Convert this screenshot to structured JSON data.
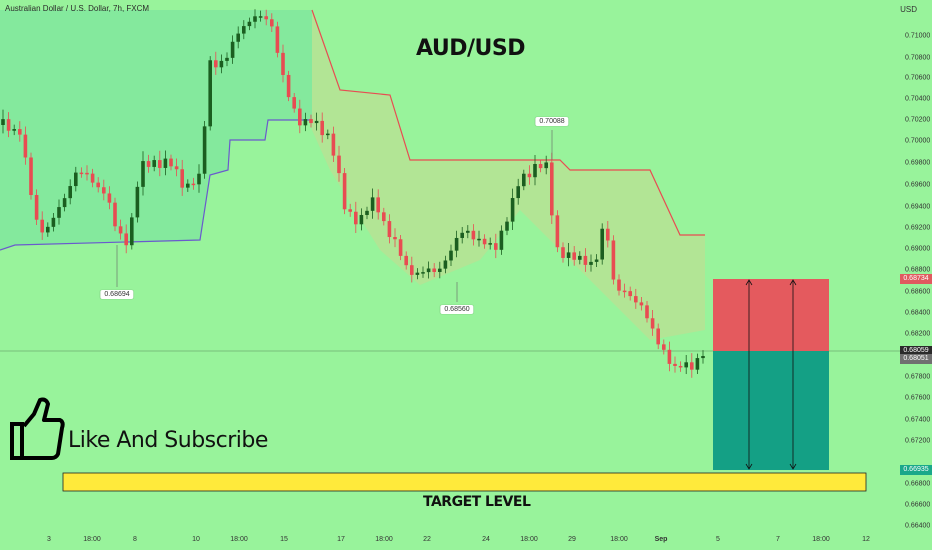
{
  "header": {
    "symbol_title": "Australian Dollar / U.S. Dollar, 7h, FXCM",
    "chart_title": "AUD/USD",
    "currency": "USD"
  },
  "y_axis_ticks": [
    "0.71000",
    "0.70800",
    "0.70600",
    "0.70400",
    "0.70200",
    "0.70000",
    "0.69800",
    "0.69600",
    "0.69400",
    "0.69200",
    "0.69000",
    "0.68800",
    "0.68600",
    "0.68400",
    "0.68200",
    "0.68000",
    "0.67800",
    "0.67600",
    "0.67400",
    "0.67200",
    "0.66800",
    "0.66600",
    "0.66400"
  ],
  "x_axis_ticks": [
    "3",
    "18:00",
    "8",
    "10",
    "18:00",
    "15",
    "17",
    "18:00",
    "22",
    "24",
    "18:00",
    "29",
    "18:00",
    "Sep",
    "5",
    "7",
    "18:00",
    "12"
  ],
  "price_tags": [
    {
      "value": "0.68734",
      "color": "#e05a5f"
    },
    {
      "value": "0.68059",
      "color": "#2b2b2b"
    },
    {
      "value": "0.68051",
      "color": "#707070"
    },
    {
      "value": "0.66935",
      "color": "#1aa88a"
    }
  ],
  "annotations": {
    "low_1": "0.68694",
    "low_2": "0.68560",
    "high_1": "0.70088"
  },
  "overlays": {
    "like_text": "Like And Subscribe",
    "target_text": "TARGET LEVEL"
  },
  "colors": {
    "background": "#98f39b",
    "up_candle": "#1b5e20",
    "down_candle": "#e84c52",
    "stop_zone": "#e45a5e",
    "target_zone": "#14a085",
    "target_bar": "#ffea3b"
  }
}
